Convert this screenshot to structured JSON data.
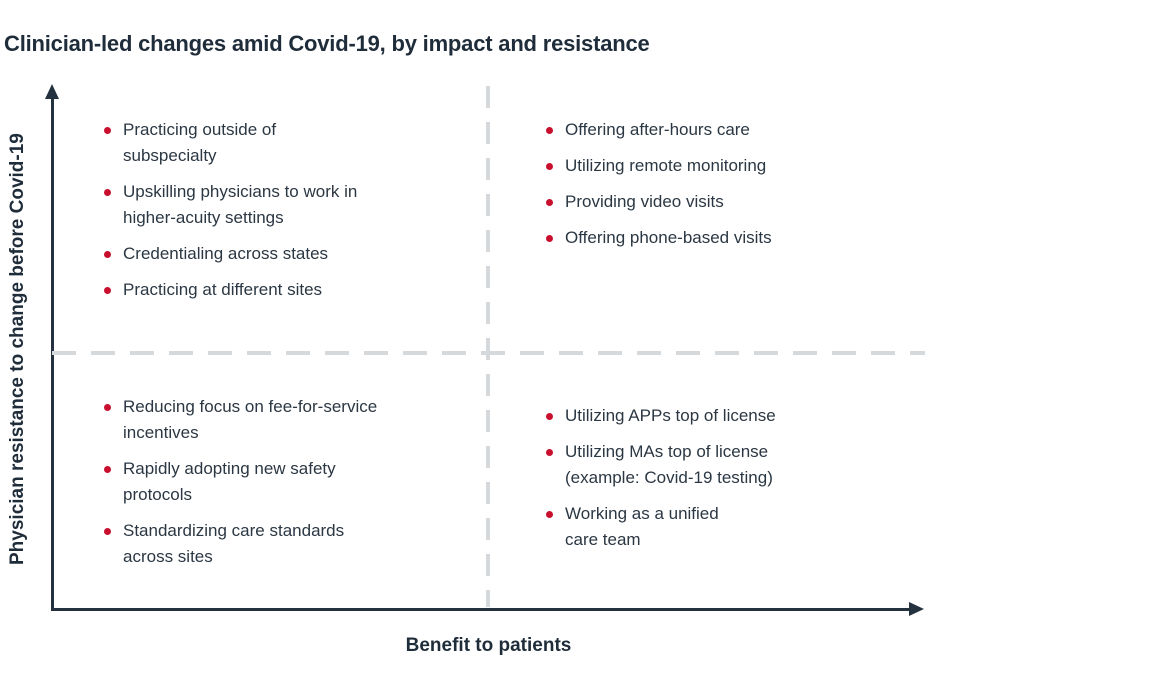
{
  "title": "Clinician-led changes amid Covid-19, by impact and resistance",
  "y_axis": {
    "label": "Physician resistance to change before Covid-19"
  },
  "x_axis": {
    "label": "Benefit to patients"
  },
  "quadrants": {
    "top_left": {
      "items": [
        "Practicing outside of\nsubspecialty",
        "Upskilling physicians to work in\nhigher-acuity settings",
        "Credentialing across states",
        "Practicing at different sites"
      ]
    },
    "top_right": {
      "items": [
        "Offering after-hours care",
        "Utilizing remote monitoring",
        "Providing video visits",
        "Offering phone-based visits"
      ]
    },
    "bottom_left": {
      "items": [
        "Reducing focus on fee-for-service\nincentives",
        "Rapidly adopting new safety\nprotocols",
        "Standardizing care standards\nacross sites"
      ]
    },
    "bottom_right": {
      "items": [
        "Utilizing APPs top of license",
        "Utilizing MAs top of license\n(example: Covid-19 testing)",
        "Working as a unified\ncare team"
      ]
    }
  },
  "icons": {
    "bullet": "red-dot",
    "y_axis_arrow": "arrow-up",
    "x_axis_arrow": "arrow-right"
  },
  "colors": {
    "title": "#1f2c3a",
    "text": "#2b3743",
    "axis": "#243240",
    "dashed": "#d6d9dc",
    "accent_red": "#c8102e",
    "background": "#ffffff"
  }
}
